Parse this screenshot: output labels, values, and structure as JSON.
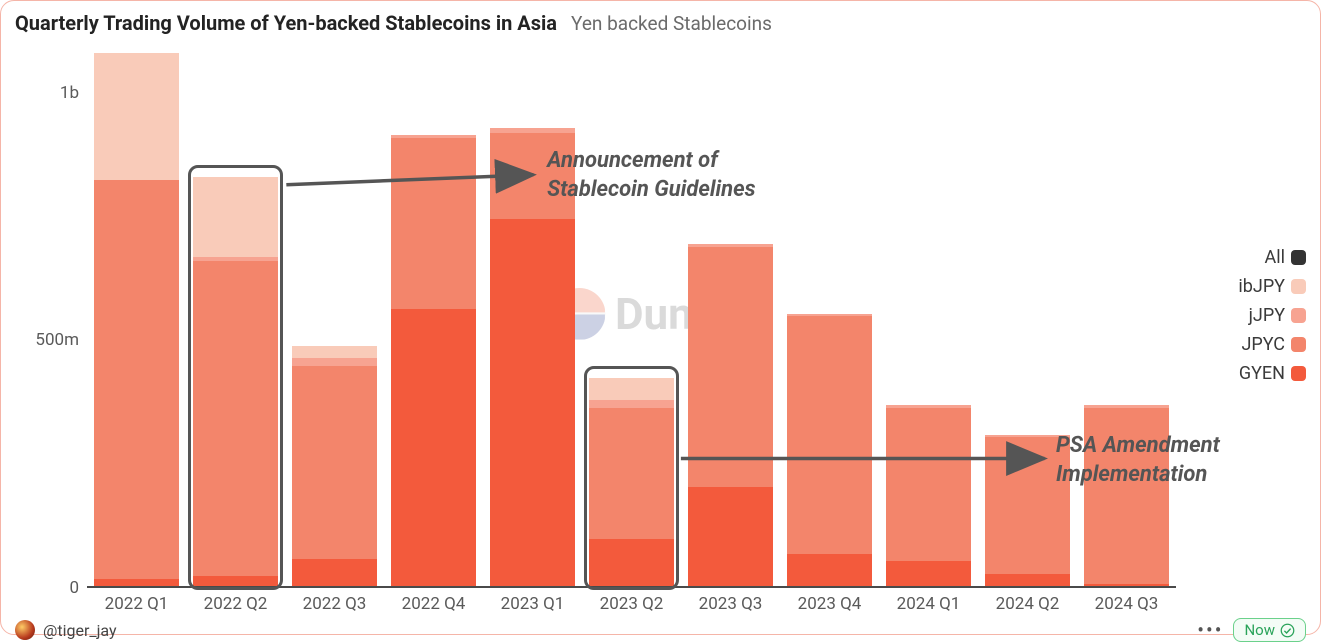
{
  "header": {
    "title": "Quarterly Trading Volume of Yen-backed Stablecoins in Asia",
    "subtitle": "Yen backed Stablecoins"
  },
  "chart": {
    "type": "stacked-bar",
    "y_max": 1100000000,
    "y_ticks": [
      {
        "value": 0,
        "label": "0"
      },
      {
        "value": 500000000,
        "label": "500m"
      },
      {
        "value": 1000000000,
        "label": "1b"
      }
    ],
    "categories": [
      "2022 Q1",
      "2022 Q2",
      "2022 Q3",
      "2022 Q4",
      "2023 Q1",
      "2023 Q2",
      "2023 Q3",
      "2023 Q4",
      "2024 Q1",
      "2024 Q2",
      "2024 Q3"
    ],
    "series": [
      {
        "key": "GYEN",
        "label": "GYEN",
        "color": "#f35a3c"
      },
      {
        "key": "JPYC",
        "label": "JPYC",
        "color": "#f3856b"
      },
      {
        "key": "jJPY",
        "label": "jJPY",
        "color": "#f7a391"
      },
      {
        "key": "ibJPY",
        "label": "ibJPY",
        "color": "#f9cbb9"
      }
    ],
    "legend_extra": {
      "label": "All",
      "color": "#333333"
    },
    "data": {
      "2022 Q1": {
        "GYEN": 15000000,
        "JPYC": 805000000,
        "jJPY": 0,
        "ibJPY": 255000000
      },
      "2022 Q2": {
        "GYEN": 20000000,
        "JPYC": 635000000,
        "jJPY": 10000000,
        "ibJPY": 160000000
      },
      "2022 Q3": {
        "GYEN": 55000000,
        "JPYC": 390000000,
        "jJPY": 15000000,
        "ibJPY": 25000000
      },
      "2022 Q4": {
        "GYEN": 560000000,
        "JPYC": 345000000,
        "jJPY": 5000000,
        "ibJPY": 0
      },
      "2023 Q1": {
        "GYEN": 740000000,
        "JPYC": 175000000,
        "jJPY": 10000000,
        "ibJPY": 0
      },
      "2023 Q2": {
        "GYEN": 95000000,
        "JPYC": 265000000,
        "jJPY": 15000000,
        "ibJPY": 45000000
      },
      "2023 Q3": {
        "GYEN": 200000000,
        "JPYC": 485000000,
        "jJPY": 5000000,
        "ibJPY": 0
      },
      "2023 Q4": {
        "GYEN": 65000000,
        "JPYC": 480000000,
        "jJPY": 5000000,
        "ibJPY": 0
      },
      "2024 Q1": {
        "GYEN": 50000000,
        "JPYC": 310000000,
        "jJPY": 5000000,
        "ibJPY": 0
      },
      "2024 Q2": {
        "GYEN": 25000000,
        "JPYC": 275000000,
        "jJPY": 5000000,
        "ibJPY": 0
      },
      "2024 Q3": {
        "GYEN": 5000000,
        "JPYC": 355000000,
        "jJPY": 5000000,
        "ibJPY": 0
      }
    },
    "bar_width_pct": 86,
    "axis_color": "#4a4a4a",
    "axis_fontsize": 17,
    "background_color": "#ffffff"
  },
  "annotations": {
    "a1_text": "Announcement of\nStablecoin Guidelines",
    "a2_text": "PSA Amendment\nImplementation",
    "highlight_categories": [
      "2022 Q2",
      "2023 Q2"
    ]
  },
  "watermark": {
    "text": "Dune"
  },
  "footer": {
    "author_handle": "@tiger_jay",
    "now_label": "Now"
  }
}
